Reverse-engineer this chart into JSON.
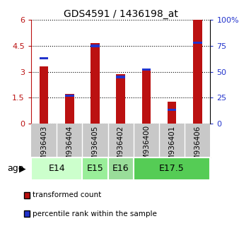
{
  "title": "GDS4591 / 1436198_at",
  "samples": [
    "GSM936403",
    "GSM936404",
    "GSM936405",
    "GSM936402",
    "GSM936400",
    "GSM936401",
    "GSM936406"
  ],
  "transformed_count": [
    3.3,
    1.7,
    4.65,
    2.85,
    3.15,
    1.25,
    6.0
  ],
  "percentile_rank": [
    63,
    27,
    75,
    45,
    52,
    13,
    78
  ],
  "age_groups": [
    {
      "label": "E14",
      "samples": [
        0,
        1
      ],
      "color": "#ccffcc"
    },
    {
      "label": "E15",
      "samples": [
        2
      ],
      "color": "#99ee99"
    },
    {
      "label": "E16",
      "samples": [
        3
      ],
      "color": "#99dd99"
    },
    {
      "label": "E17.5",
      "samples": [
        4,
        5,
        6
      ],
      "color": "#55cc55"
    }
  ],
  "ylim_left": [
    0,
    6
  ],
  "ylim_right": [
    0,
    100
  ],
  "yticks_left": [
    0,
    1.5,
    3.0,
    4.5,
    6
  ],
  "yticks_left_labels": [
    "0",
    "1.5",
    "3",
    "4.5",
    "6"
  ],
  "yticks_right": [
    0,
    25,
    50,
    75,
    100
  ],
  "yticks_right_labels": [
    "0",
    "25",
    "50",
    "75",
    "100%"
  ],
  "bar_color_red": "#bb1111",
  "bar_color_blue": "#2233cc",
  "bar_width": 0.35,
  "grid_color": "black",
  "sample_bg_color": "#c8c8c8",
  "age_label": "age",
  "legend_items": [
    {
      "color": "#bb1111",
      "label": "transformed count"
    },
    {
      "color": "#2233cc",
      "label": "percentile rank within the sample"
    }
  ],
  "title_fontsize": 10,
  "tick_fontsize": 8,
  "label_fontsize": 7.5,
  "legend_fontsize": 7.5,
  "age_fontsize": 9,
  "age_label_fontsize": 9
}
